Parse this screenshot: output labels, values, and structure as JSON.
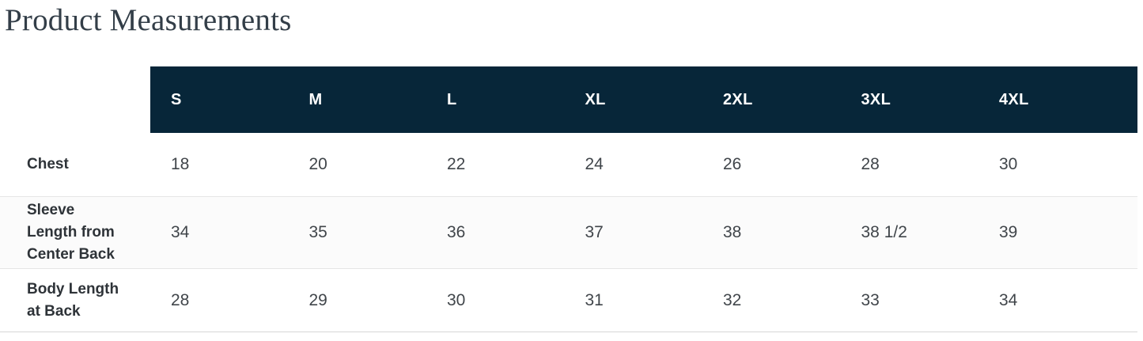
{
  "page": {
    "title": "Product Measurements"
  },
  "table": {
    "columns": [
      "S",
      "M",
      "L",
      "XL",
      "2XL",
      "3XL",
      "4XL"
    ],
    "rows": [
      {
        "label": "Chest",
        "values": [
          "18",
          "20",
          "22",
          "24",
          "26",
          "28",
          "30"
        ]
      },
      {
        "label": "Sleeve Length from Center Back",
        "values": [
          "34",
          "35",
          "36",
          "37",
          "38",
          "38 1/2",
          "39"
        ]
      },
      {
        "label": "Body Length at Back",
        "values": [
          "28",
          "29",
          "30",
          "31",
          "32",
          "33",
          "34"
        ]
      }
    ]
  },
  "colors": {
    "header_bg": "#072639",
    "header_text": "#ffffff",
    "title_text": "#333e48",
    "label_text": "#2e3338",
    "value_text": "#40454a",
    "stripe_bg": "#fbfbfb",
    "divider": "#e5e5e5",
    "bottom_border": "#d6d6d6"
  }
}
